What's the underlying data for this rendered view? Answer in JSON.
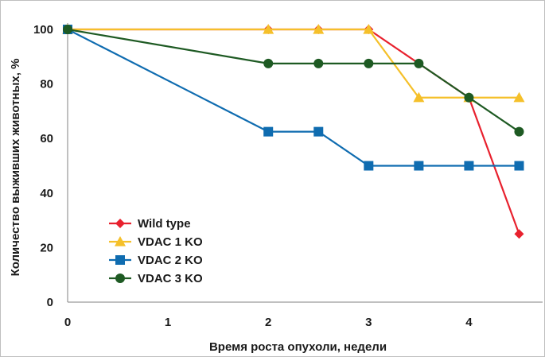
{
  "chart_data": {
    "type": "line",
    "title": "",
    "xlabel": "Время роста опухоли, недели",
    "ylabel": "Количество выживших животных, %",
    "xlim": [
      0,
      4.75
    ],
    "ylim": [
      0,
      100
    ],
    "x_ticks": [
      0,
      1,
      2,
      3,
      4
    ],
    "y_ticks": [
      0,
      20,
      40,
      60,
      80,
      100
    ],
    "legend_position": "bottom-left",
    "series": [
      {
        "name": "Wild type",
        "color": "#e8212e",
        "marker": "diamond",
        "x": [
          0,
          2,
          2.5,
          3,
          3.5,
          4,
          4.5
        ],
        "y": [
          100,
          100,
          100,
          100,
          87.5,
          75,
          25
        ]
      },
      {
        "name": "VDAC 1 KO",
        "color": "#f5c02a",
        "marker": "triangle",
        "x": [
          0,
          2,
          2.5,
          3,
          3.5,
          4,
          4.5
        ],
        "y": [
          100,
          100,
          100,
          100,
          75,
          75,
          75
        ]
      },
      {
        "name": "VDAC 2 KO",
        "color": "#0f6cb0",
        "marker": "square",
        "x": [
          0,
          2,
          2.5,
          3,
          3.5,
          4,
          4.5
        ],
        "y": [
          100,
          62.5,
          62.5,
          50,
          50,
          50,
          50
        ]
      },
      {
        "name": "VDAC 3 KO",
        "color": "#1e5a23",
        "marker": "circle",
        "x": [
          0,
          2,
          2.5,
          3,
          3.5,
          4,
          4.5
        ],
        "y": [
          100,
          87.5,
          87.5,
          87.5,
          87.5,
          75,
          62.5
        ]
      }
    ]
  }
}
